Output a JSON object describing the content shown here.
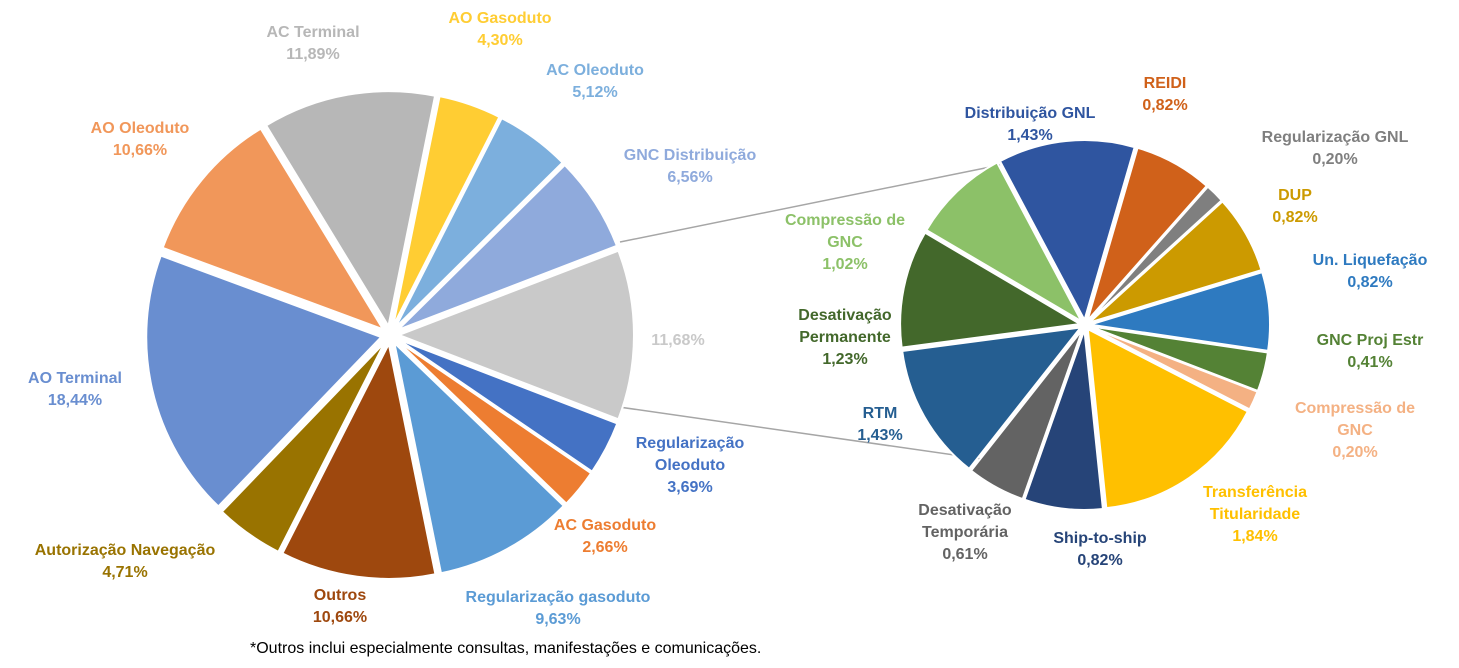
{
  "chart_data": [
    {
      "type": "pie",
      "categories": [
        "Regularização Oleoduto",
        "AC Gasoduto",
        "Regularização  gasoduto",
        "Outros",
        "Autorização Navegação",
        "AO Terminal",
        "AO Oleoduto",
        "AC Terminal",
        "AO Gasoduto",
        "AC Oleoduto",
        "GNC Distribuição",
        null
      ],
      "values": [
        3.69,
        2.66,
        9.63,
        10.66,
        4.71,
        18.44,
        10.66,
        11.89,
        4.3,
        5.12,
        6.56,
        11.68
      ],
      "value_labels": [
        "3,69%",
        "2,66%",
        "9,63%",
        "10,66%",
        "4,71%",
        "18,44%",
        "10,66%",
        "11,89%",
        "4,30%",
        "5,12%",
        "6,56%",
        "11,68%"
      ],
      "colors": [
        "#4472c4",
        "#ed7d31",
        "#5b9bd5",
        "#9e480e",
        "#997300",
        "#698ed0",
        "#f1975a",
        "#b7b7b7",
        "#ffcd33",
        "#7cafdd",
        "#8faadc",
        "#c9c9c9"
      ],
      "note": "*Outros inclui especialmente consultas, manifestações e comunicações."
    },
    {
      "type": "pie",
      "categories": [
        "Distribuição  GNL",
        "REIDI",
        "Regularização GNL",
        "DUP",
        "Un. Liquefação",
        "GNC Proj Estr",
        "Compressão de GNC",
        "Transferência Titularidade",
        "Ship-to-ship",
        "Desativação Temporária",
        "RTM",
        "Desativação Permanente",
        "Compressão de GNC"
      ],
      "values": [
        1.43,
        0.82,
        0.2,
        0.82,
        0.82,
        0.41,
        0.2,
        1.84,
        0.82,
        0.61,
        1.43,
        1.23,
        1.02
      ],
      "value_labels": [
        "1,43%",
        "0,82%",
        "0,20%",
        "0,82%",
        "0,82%",
        "0,41%",
        "0,20%",
        "1,84%",
        "0,82%",
        "0,61%",
        "1,43%",
        "1,23%",
        "1,02%"
      ],
      "colors": [
        "#2f55a0",
        "#d0611a",
        "#7f7f7f",
        "#cc9a00",
        "#2e7ac0",
        "#548235",
        "#f4b183",
        "#ffc000",
        "#264478",
        "#636363",
        "#255e91",
        "#43682b",
        "#8cc168"
      ]
    }
  ]
}
